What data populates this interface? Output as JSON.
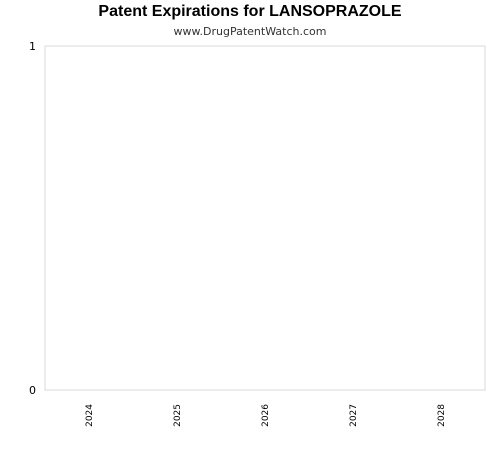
{
  "chart_data": {
    "type": "bar",
    "title": "Patent Expirations for LANSOPRAZOLE",
    "subtitle": "www.DrugPatentWatch.com",
    "categories": [
      "2024",
      "2025",
      "2026",
      "2027",
      "2028"
    ],
    "values": [
      0,
      0,
      0,
      0,
      0
    ],
    "xlabel": "",
    "ylabel": "",
    "ylim": [
      0,
      1
    ],
    "yticks": [
      "0",
      "1"
    ],
    "grid": false,
    "legend": "none",
    "colors": {
      "plot_border": "#d9d9d9",
      "bar": "#4f81bd"
    }
  }
}
